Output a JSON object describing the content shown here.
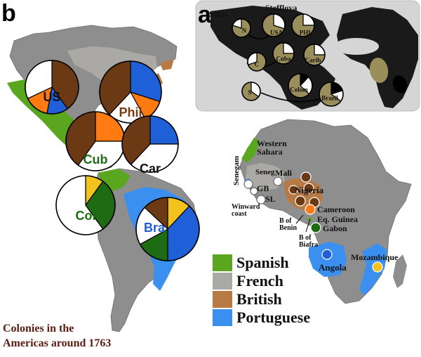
{
  "panels": {
    "a": "a",
    "b": "b"
  },
  "colors": {
    "spanish": "#5aa61e",
    "french": "#aaa9a5",
    "british": "#b87a45",
    "portuguese": "#3a8fef",
    "land": "#8e8e8e",
    "inset_bg": "#d5d5d5",
    "brown": "#6b3a14",
    "orange": "#ff7a10",
    "blue": "#1f5fd8",
    "yellow": "#f4c21c",
    "green": "#1d6b12",
    "white": "#ffffff",
    "olive": "#9a8f5a",
    "black": "#000000"
  },
  "americas_pies": [
    {
      "label": "US",
      "label_color": "#111111",
      "slices": [
        {
          "color": "brown",
          "value": 40
        },
        {
          "color": "blue",
          "value": 13
        },
        {
          "color": "orange",
          "value": 15
        },
        {
          "color": "white",
          "value": 32
        }
      ]
    },
    {
      "label": "Phil",
      "label_color": "#7a3b10",
      "slices": [
        {
          "color": "blue",
          "value": 30
        },
        {
          "color": "orange",
          "value": 12
        },
        {
          "color": "white",
          "value": 20
        },
        {
          "color": "brown",
          "value": 38
        }
      ]
    },
    {
      "label": "Cub",
      "label_color": "#1d6b12",
      "slices": [
        {
          "color": "orange",
          "value": 25
        },
        {
          "color": "white",
          "value": 35
        },
        {
          "color": "brown",
          "value": 40
        }
      ]
    },
    {
      "label": "Car",
      "label_color": "#111111",
      "slices": [
        {
          "color": "blue",
          "value": 25
        },
        {
          "color": "white",
          "value": 37
        },
        {
          "color": "brown",
          "value": 38
        }
      ]
    },
    {
      "label": "Col",
      "label_color": "#1d6b12",
      "slices": [
        {
          "color": "yellow",
          "value": 10
        },
        {
          "color": "green",
          "value": 30
        },
        {
          "color": "white",
          "value": 60
        }
      ]
    },
    {
      "label": "Bra",
      "label_color": "#1f5fd8",
      "slices": [
        {
          "color": "yellow",
          "value": 12
        },
        {
          "color": "blue",
          "value": 38
        },
        {
          "color": "green",
          "value": 17
        },
        {
          "color": "white",
          "value": 20
        },
        {
          "color": "brown",
          "value": 13
        }
      ]
    }
  ],
  "inset": {
    "sources": [
      "Salas",
      "Stefflova"
    ],
    "pies": [
      {
        "label": "N",
        "slices": [
          {
            "color": "olive",
            "value": 80
          },
          {
            "color": "white",
            "value": 20
          }
        ]
      },
      {
        "label": "USA",
        "slices": [
          {
            "color": "white",
            "value": 30
          },
          {
            "color": "olive",
            "value": 70
          }
        ]
      },
      {
        "label": "PHL",
        "slices": [
          {
            "color": "white",
            "value": 25
          },
          {
            "color": "olive",
            "value": 75
          }
        ]
      },
      {
        "label": "C",
        "slices": [
          {
            "color": "olive",
            "value": 70
          },
          {
            "color": "white",
            "value": 30
          }
        ]
      },
      {
        "label": "Cuba",
        "slices": [
          {
            "color": "white",
            "value": 25
          },
          {
            "color": "olive",
            "value": 75
          }
        ]
      },
      {
        "label": "Carib",
        "slices": [
          {
            "color": "white",
            "value": 25
          },
          {
            "color": "olive",
            "value": 75
          }
        ]
      },
      {
        "label": "S",
        "slices": [
          {
            "color": "white",
            "value": 35
          },
          {
            "color": "olive",
            "value": 65
          }
        ]
      },
      {
        "label": "Colom",
        "slices": [
          {
            "color": "black",
            "value": 12
          },
          {
            "color": "white",
            "value": 25
          },
          {
            "color": "olive",
            "value": 63
          }
        ]
      },
      {
        "label": "Brazil",
        "slices": [
          {
            "color": "black",
            "value": 20
          },
          {
            "color": "white",
            "value": 15
          },
          {
            "color": "olive",
            "value": 65
          }
        ]
      }
    ]
  },
  "africa_labels": {
    "western_sahara": "Western\nSahara",
    "senegam": "Senegam",
    "seneg": "Seneg",
    "mali": "Mali",
    "gb": "GB",
    "sl": "SL",
    "winward_coast": "Winward\ncoast",
    "nigeria": "Nigeria",
    "b_of_benin": "B of\nBenin",
    "cameroon": "Cameroon",
    "eq_guinea": "Eq. Guinea",
    "gabon": "Gabon",
    "b_of_biafra": "B of\nBiafra",
    "angola": "Angola",
    "mozambique": "Mozambique"
  },
  "legend": [
    {
      "label": "Spanish",
      "color": "#5aa61e"
    },
    {
      "label": "French",
      "color": "#aaa9a5"
    },
    {
      "label": "British",
      "color": "#b87a45"
    },
    {
      "label": "Portuguese",
      "color": "#3a8fef"
    }
  ],
  "caption": "Colonies in the\nAmericas around 1763"
}
